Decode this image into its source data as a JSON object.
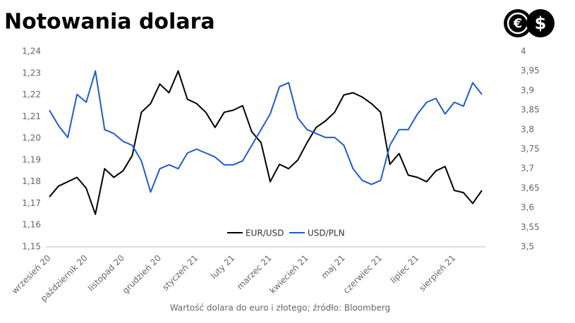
{
  "chart_data": {
    "type": "line",
    "title": "Notowania dolara",
    "caption": "Wartość dolara do euro i złotego; źródło: Bloomberg",
    "logo": [
      "€",
      "$"
    ],
    "categories": [
      "wrzesień 20",
      null,
      null,
      null,
      "październik 20",
      null,
      null,
      null,
      "listopad 20",
      null,
      null,
      null,
      "grudzień 20",
      null,
      null,
      null,
      "styczeń 21",
      null,
      null,
      null,
      "luty 21",
      null,
      null,
      null,
      "marzec 21",
      null,
      null,
      null,
      "kwiecień 21",
      null,
      null,
      null,
      "maj 21",
      null,
      null,
      null,
      "czerwiec 21",
      null,
      null,
      null,
      "lipiec 21",
      null,
      null,
      null,
      "sierpień 21",
      null,
      null,
      null
    ],
    "series": [
      {
        "name": "EUR/USD",
        "color": "#000000",
        "values": [
          1.173,
          1.178,
          1.18,
          1.182,
          1.177,
          1.165,
          1.186,
          1.182,
          1.185,
          1.192,
          1.212,
          1.216,
          1.225,
          1.221,
          1.231,
          1.218,
          1.216,
          1.212,
          1.205,
          1.212,
          1.213,
          1.215,
          1.203,
          1.198,
          1.18,
          1.188,
          1.186,
          1.19,
          1.198,
          1.205,
          1.208,
          1.212,
          1.22,
          1.221,
          1.219,
          1.216,
          1.212,
          1.188,
          1.193,
          1.183,
          1.182,
          1.18,
          1.185,
          1.187,
          1.176,
          1.175,
          1.17,
          1.176
        ]
      },
      {
        "name": "USD/PLN",
        "color": "#1f5bd0",
        "axis": "y2",
        "values": [
          3.85,
          3.81,
          3.78,
          3.89,
          3.87,
          3.95,
          3.8,
          3.79,
          3.77,
          3.76,
          3.72,
          3.64,
          3.7,
          3.71,
          3.7,
          3.74,
          3.75,
          3.74,
          3.73,
          3.71,
          3.71,
          3.72,
          3.76,
          3.8,
          3.84,
          3.91,
          3.92,
          3.83,
          3.8,
          3.79,
          3.78,
          3.78,
          3.76,
          3.7,
          3.67,
          3.66,
          3.67,
          3.76,
          3.8,
          3.8,
          3.84,
          3.87,
          3.88,
          3.84,
          3.87,
          3.86,
          3.92,
          3.89
        ]
      }
    ],
    "ylim": [
      1.15,
      1.24
    ],
    "yticks": [
      {
        "value": 1.15,
        "label": "1,15"
      },
      {
        "value": 1.16,
        "label": "1,16"
      },
      {
        "value": 1.17,
        "label": "1,17"
      },
      {
        "value": 1.18,
        "label": "1,18"
      },
      {
        "value": 1.19,
        "label": "1,19"
      },
      {
        "value": 1.2,
        "label": "1,20"
      },
      {
        "value": 1.21,
        "label": "1,21"
      },
      {
        "value": 1.22,
        "label": "1,22"
      },
      {
        "value": 1.23,
        "label": "1,23"
      },
      {
        "value": 1.24,
        "label": "1,24"
      }
    ],
    "y2lim": [
      3.5,
      4
    ],
    "y2ticks": [
      {
        "value": 3.5,
        "label": "3,5"
      },
      {
        "value": 3.55,
        "label": "3,55"
      },
      {
        "value": 3.6,
        "label": "3,6"
      },
      {
        "value": 3.65,
        "label": "3,65"
      },
      {
        "value": 3.7,
        "label": "3,7"
      },
      {
        "value": 3.75,
        "label": "3,75"
      },
      {
        "value": 3.8,
        "label": "3,8"
      },
      {
        "value": 3.85,
        "label": "3,85"
      },
      {
        "value": 3.9,
        "label": "3,9"
      },
      {
        "value": 3.95,
        "label": "3,95"
      },
      4
    ],
    "grid": false,
    "legend": "bottom"
  }
}
